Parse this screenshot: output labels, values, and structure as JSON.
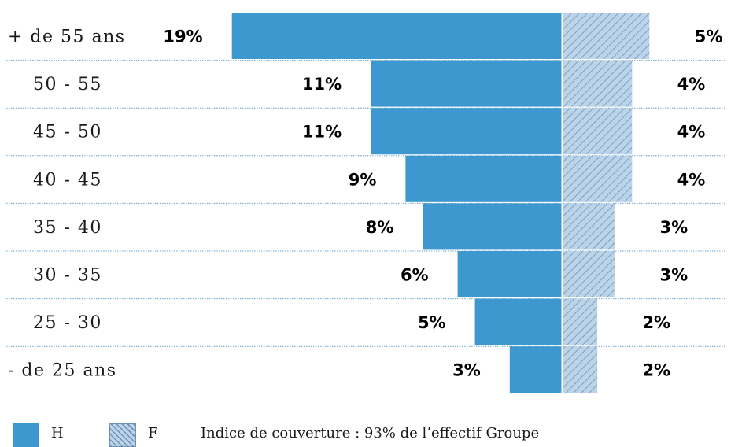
{
  "colors": {
    "men": "#3d98cf",
    "women_hatch_fill": "#bcd4ea",
    "women_hatch_line": "#6f92b4",
    "divider": "#6aa6d1"
  },
  "chart_data": {
    "type": "bar",
    "subtype": "population-pyramid",
    "categories": [
      "+ de 55 ans",
      "50 - 55",
      "45 - 50",
      "40 - 45",
      "35 - 40",
      "30 - 35",
      "25 - 30",
      "- de 25 ans"
    ],
    "series": [
      {
        "name": "H",
        "values": [
          19,
          11,
          11,
          9,
          8,
          6,
          5,
          3
        ],
        "labels": [
          "19%",
          "11%",
          "11%",
          "9%",
          "8%",
          "6%",
          "5%",
          "3%"
        ]
      },
      {
        "name": "F",
        "values": [
          5,
          4,
          4,
          4,
          3,
          3,
          2,
          2
        ],
        "labels": [
          "5%",
          "4%",
          "4%",
          "4%",
          "3%",
          "3%",
          "2%",
          "2%"
        ]
      }
    ],
    "legend": {
      "position": "bottom-left"
    }
  },
  "footnote": "Indice de couverture : 93% de l’effectif Groupe"
}
